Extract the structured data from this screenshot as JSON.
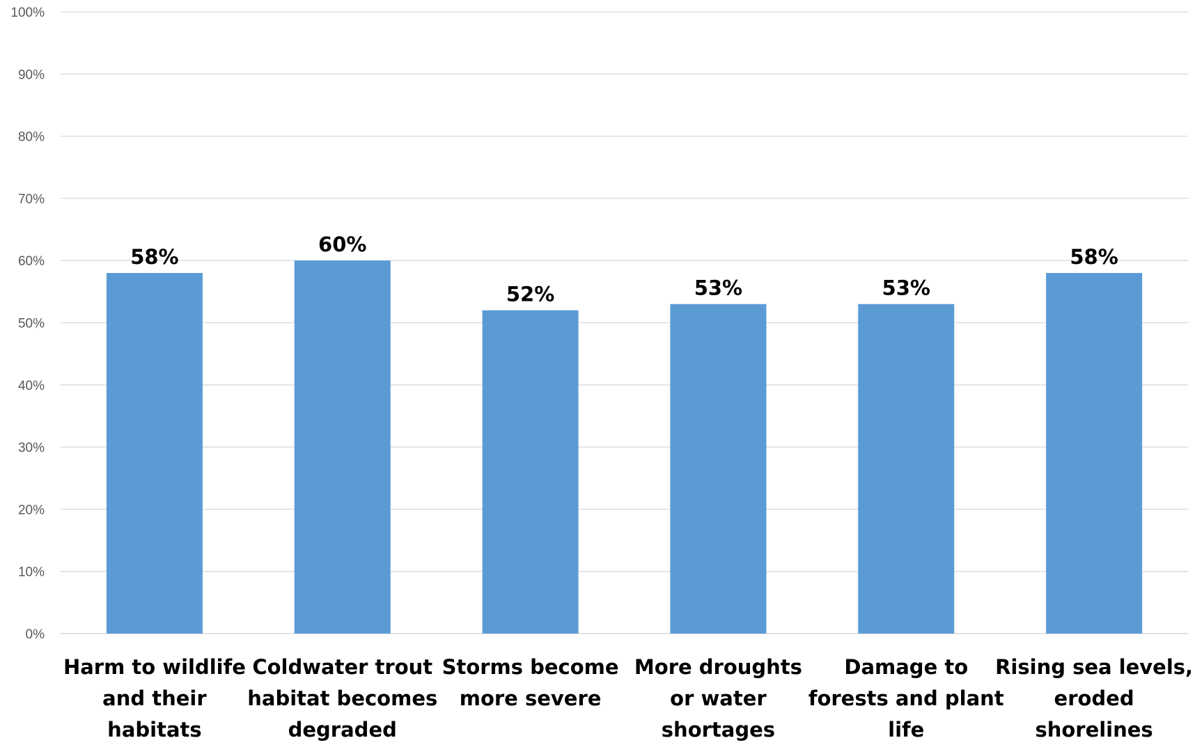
{
  "chart_data": {
    "type": "bar",
    "title": "",
    "xlabel": "",
    "ylabel": "",
    "ylim": [
      0,
      100
    ],
    "y_ticks": [
      "0%",
      "10%",
      "20%",
      "30%",
      "40%",
      "50%",
      "60%",
      "70%",
      "80%",
      "90%",
      "100%"
    ],
    "y_tick_values": [
      0,
      10,
      20,
      30,
      40,
      50,
      60,
      70,
      80,
      90,
      100
    ],
    "grid": true,
    "legend": "none",
    "bar_color": "#5b9bd5",
    "categories": [
      [
        "Harm to wildlife",
        "and their",
        "habitats"
      ],
      [
        "Coldwater trout",
        "habitat becomes",
        "degraded"
      ],
      [
        "Storms become",
        "more severe"
      ],
      [
        "More droughts",
        "or water",
        "shortages"
      ],
      [
        "Damage to",
        "forests and plant",
        "life"
      ],
      [
        "Rising sea levels,",
        "eroded",
        "shorelines"
      ]
    ],
    "values": [
      58,
      60,
      52,
      53,
      53,
      58
    ],
    "data_labels": [
      "58%",
      "60%",
      "52%",
      "53%",
      "53%",
      "58%"
    ]
  }
}
